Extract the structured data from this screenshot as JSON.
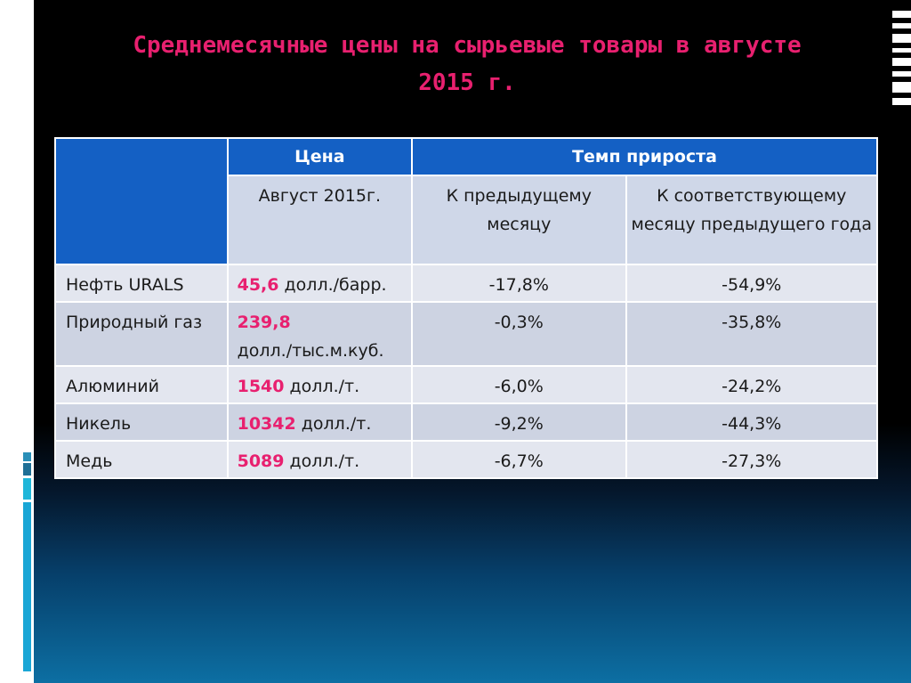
{
  "slide": {
    "title_line1": "Среднемесячные цены на сырьевые товары в августе",
    "title_line2": "2015 г."
  },
  "table": {
    "header_price": "Цена",
    "header_growth": "Темп прироста",
    "sub_price": "Август 2015г.",
    "sub_prev_month": "К предыдущему месяцу",
    "sub_prev_year": "К соответствующему месяцу предыдущего года",
    "rows": [
      {
        "name": "Нефть URALS",
        "value": "45,6",
        "unit": "долл./барр.",
        "prev_month": "-17,8%",
        "prev_year": "-54,9%"
      },
      {
        "name": "Природный газ",
        "value": "239,8",
        "unit": "долл./тыс.м.куб.",
        "prev_month": "-0,3%",
        "prev_year": "-35,8%"
      },
      {
        "name": "Алюминий",
        "value": "1540",
        "unit": "долл./т.",
        "prev_month": "-6,0%",
        "prev_year": "-24,2%"
      },
      {
        "name": "Никель",
        "value": "10342",
        "unit": "долл./т.",
        "prev_month": "-9,2%",
        "prev_year": "-44,3%"
      },
      {
        "name": "Медь",
        "value": "5089",
        "unit": "долл./т.",
        "prev_month": "-6,7%",
        "prev_year": "-27,3%"
      }
    ]
  },
  "colors": {
    "title": "#e8206f",
    "header_bg": "#1460c4",
    "value_highlight": "#e8206f"
  }
}
